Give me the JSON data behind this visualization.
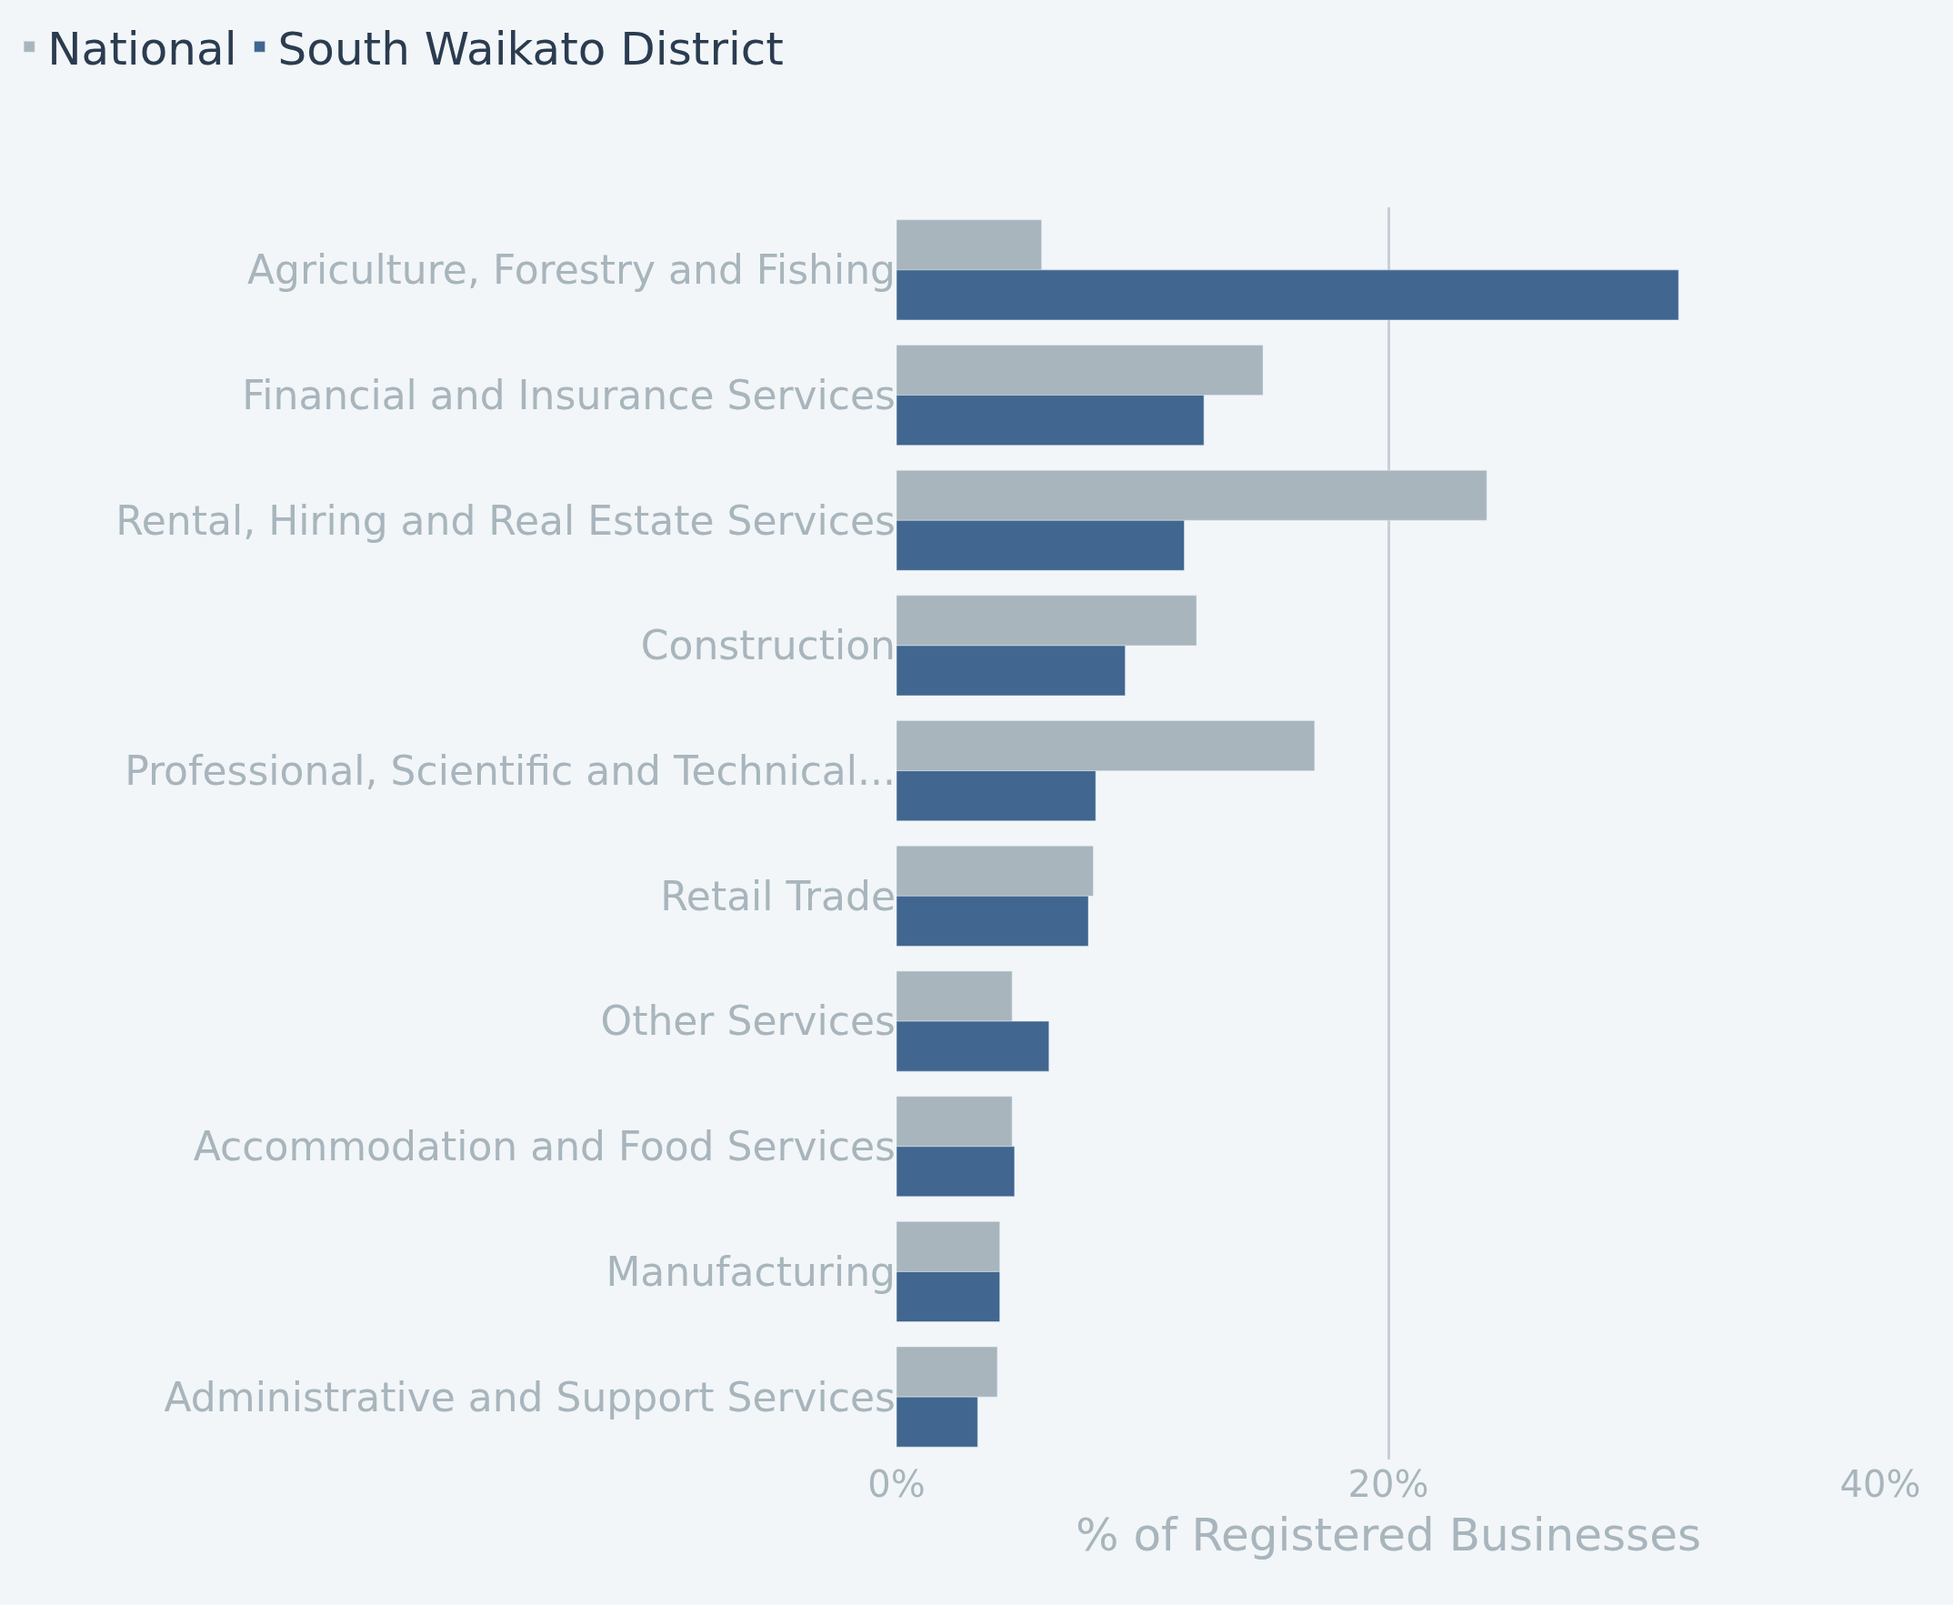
{
  "chart_data": {
    "type": "bar",
    "orientation": "horizontal",
    "xlabel": "% of Registered Businesses",
    "categories": [
      "Agriculture, Forestry and Fishing",
      "Financial and Insurance Services",
      "Rental, Hiring and Real Estate Services",
      "Construction",
      "Professional, Scientific and Technical...",
      "Retail Trade",
      "Other Services",
      "Accommodation and Food Services",
      "Manufacturing",
      "Administrative and Support Services"
    ],
    "series": [
      {
        "name": "National",
        "color": "#a8b5bc",
        "values": [
          5.9,
          14.9,
          24.0,
          12.2,
          17.0,
          8.0,
          4.7,
          4.7,
          4.2,
          4.1
        ]
      },
      {
        "name": "South Waikato District",
        "color": "#41668f",
        "values": [
          31.8,
          12.5,
          11.7,
          9.3,
          8.1,
          7.8,
          6.2,
          4.8,
          4.2,
          3.3
        ]
      }
    ],
    "xlim": [
      0,
      40
    ],
    "xticks": [
      {
        "value": 0,
        "label": "0%"
      },
      {
        "value": 20,
        "label": "20%"
      },
      {
        "value": 40,
        "label": "40%"
      }
    ],
    "grid": "x",
    "legend": "top left"
  }
}
